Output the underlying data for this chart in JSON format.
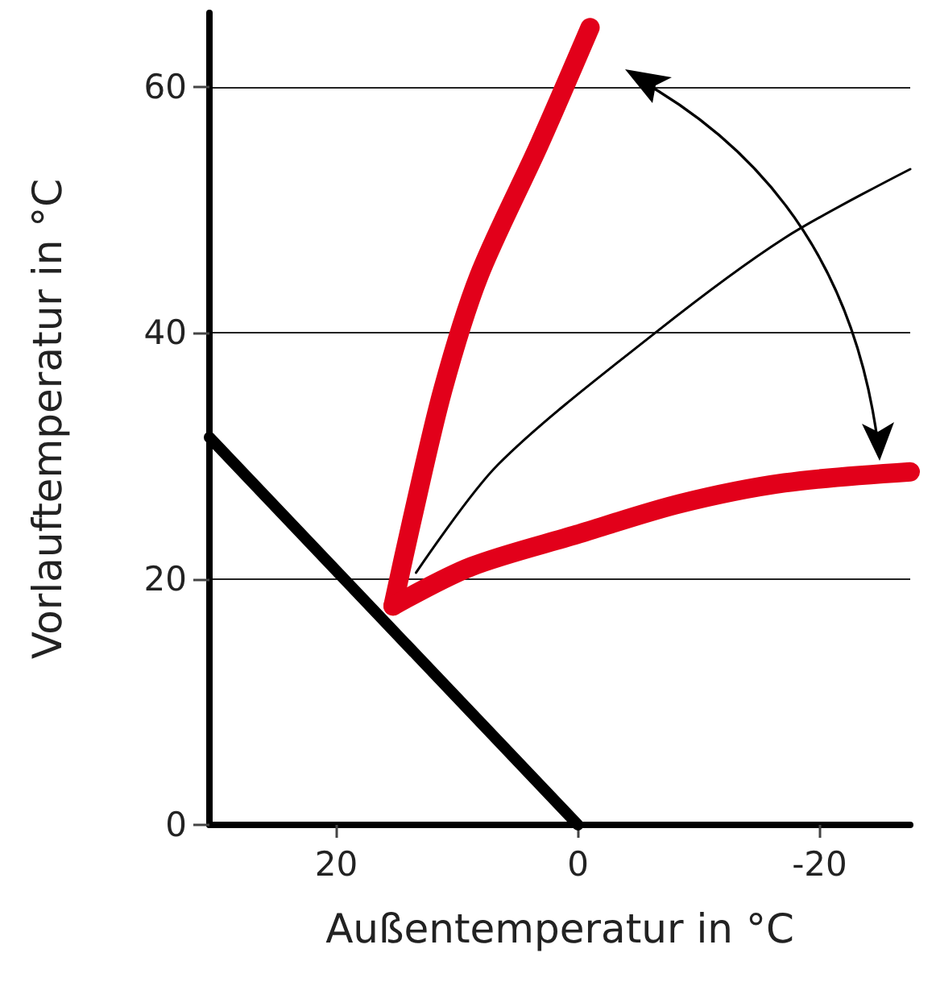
{
  "chart_data": {
    "type": "line",
    "xlabel": "Außentemperatur in °C",
    "ylabel": "Vorlauftemperatur in °C",
    "xlim": [
      30.5,
      -27.5
    ],
    "xticks": [
      20,
      0,
      -20
    ],
    "ylim": [
      0,
      66
    ],
    "yticks": [
      0,
      20,
      40,
      60
    ],
    "grid": "y",
    "marker": "none",
    "line_style": "solid",
    "series": [
      {
        "color": "#000000",
        "x": [
          30.5,
          0
        ],
        "values": [
          31.5,
          0
        ]
      },
      {
        "color": "#e2001a",
        "x": [
          15.3,
          13.8,
          11.2,
          8.2,
          3.2,
          -1
        ],
        "values": [
          17.8,
          24.5,
          35.3,
          44.6,
          55.3,
          64.8
        ]
      },
      {
        "color": "#e2001a",
        "x": [
          15.3,
          8.8,
          0.1,
          -8.4,
          -17.1,
          -27.5
        ],
        "values": [
          17.8,
          21,
          23.6,
          26.1,
          27.8,
          28.7
        ]
      },
      {
        "color": "#000000",
        "x": [
          13.4,
          6.6,
          -6.4,
          -17.1,
          -27.5
        ],
        "values": [
          20.5,
          29.3,
          40,
          47.7,
          53.3
        ]
      }
    ]
  }
}
